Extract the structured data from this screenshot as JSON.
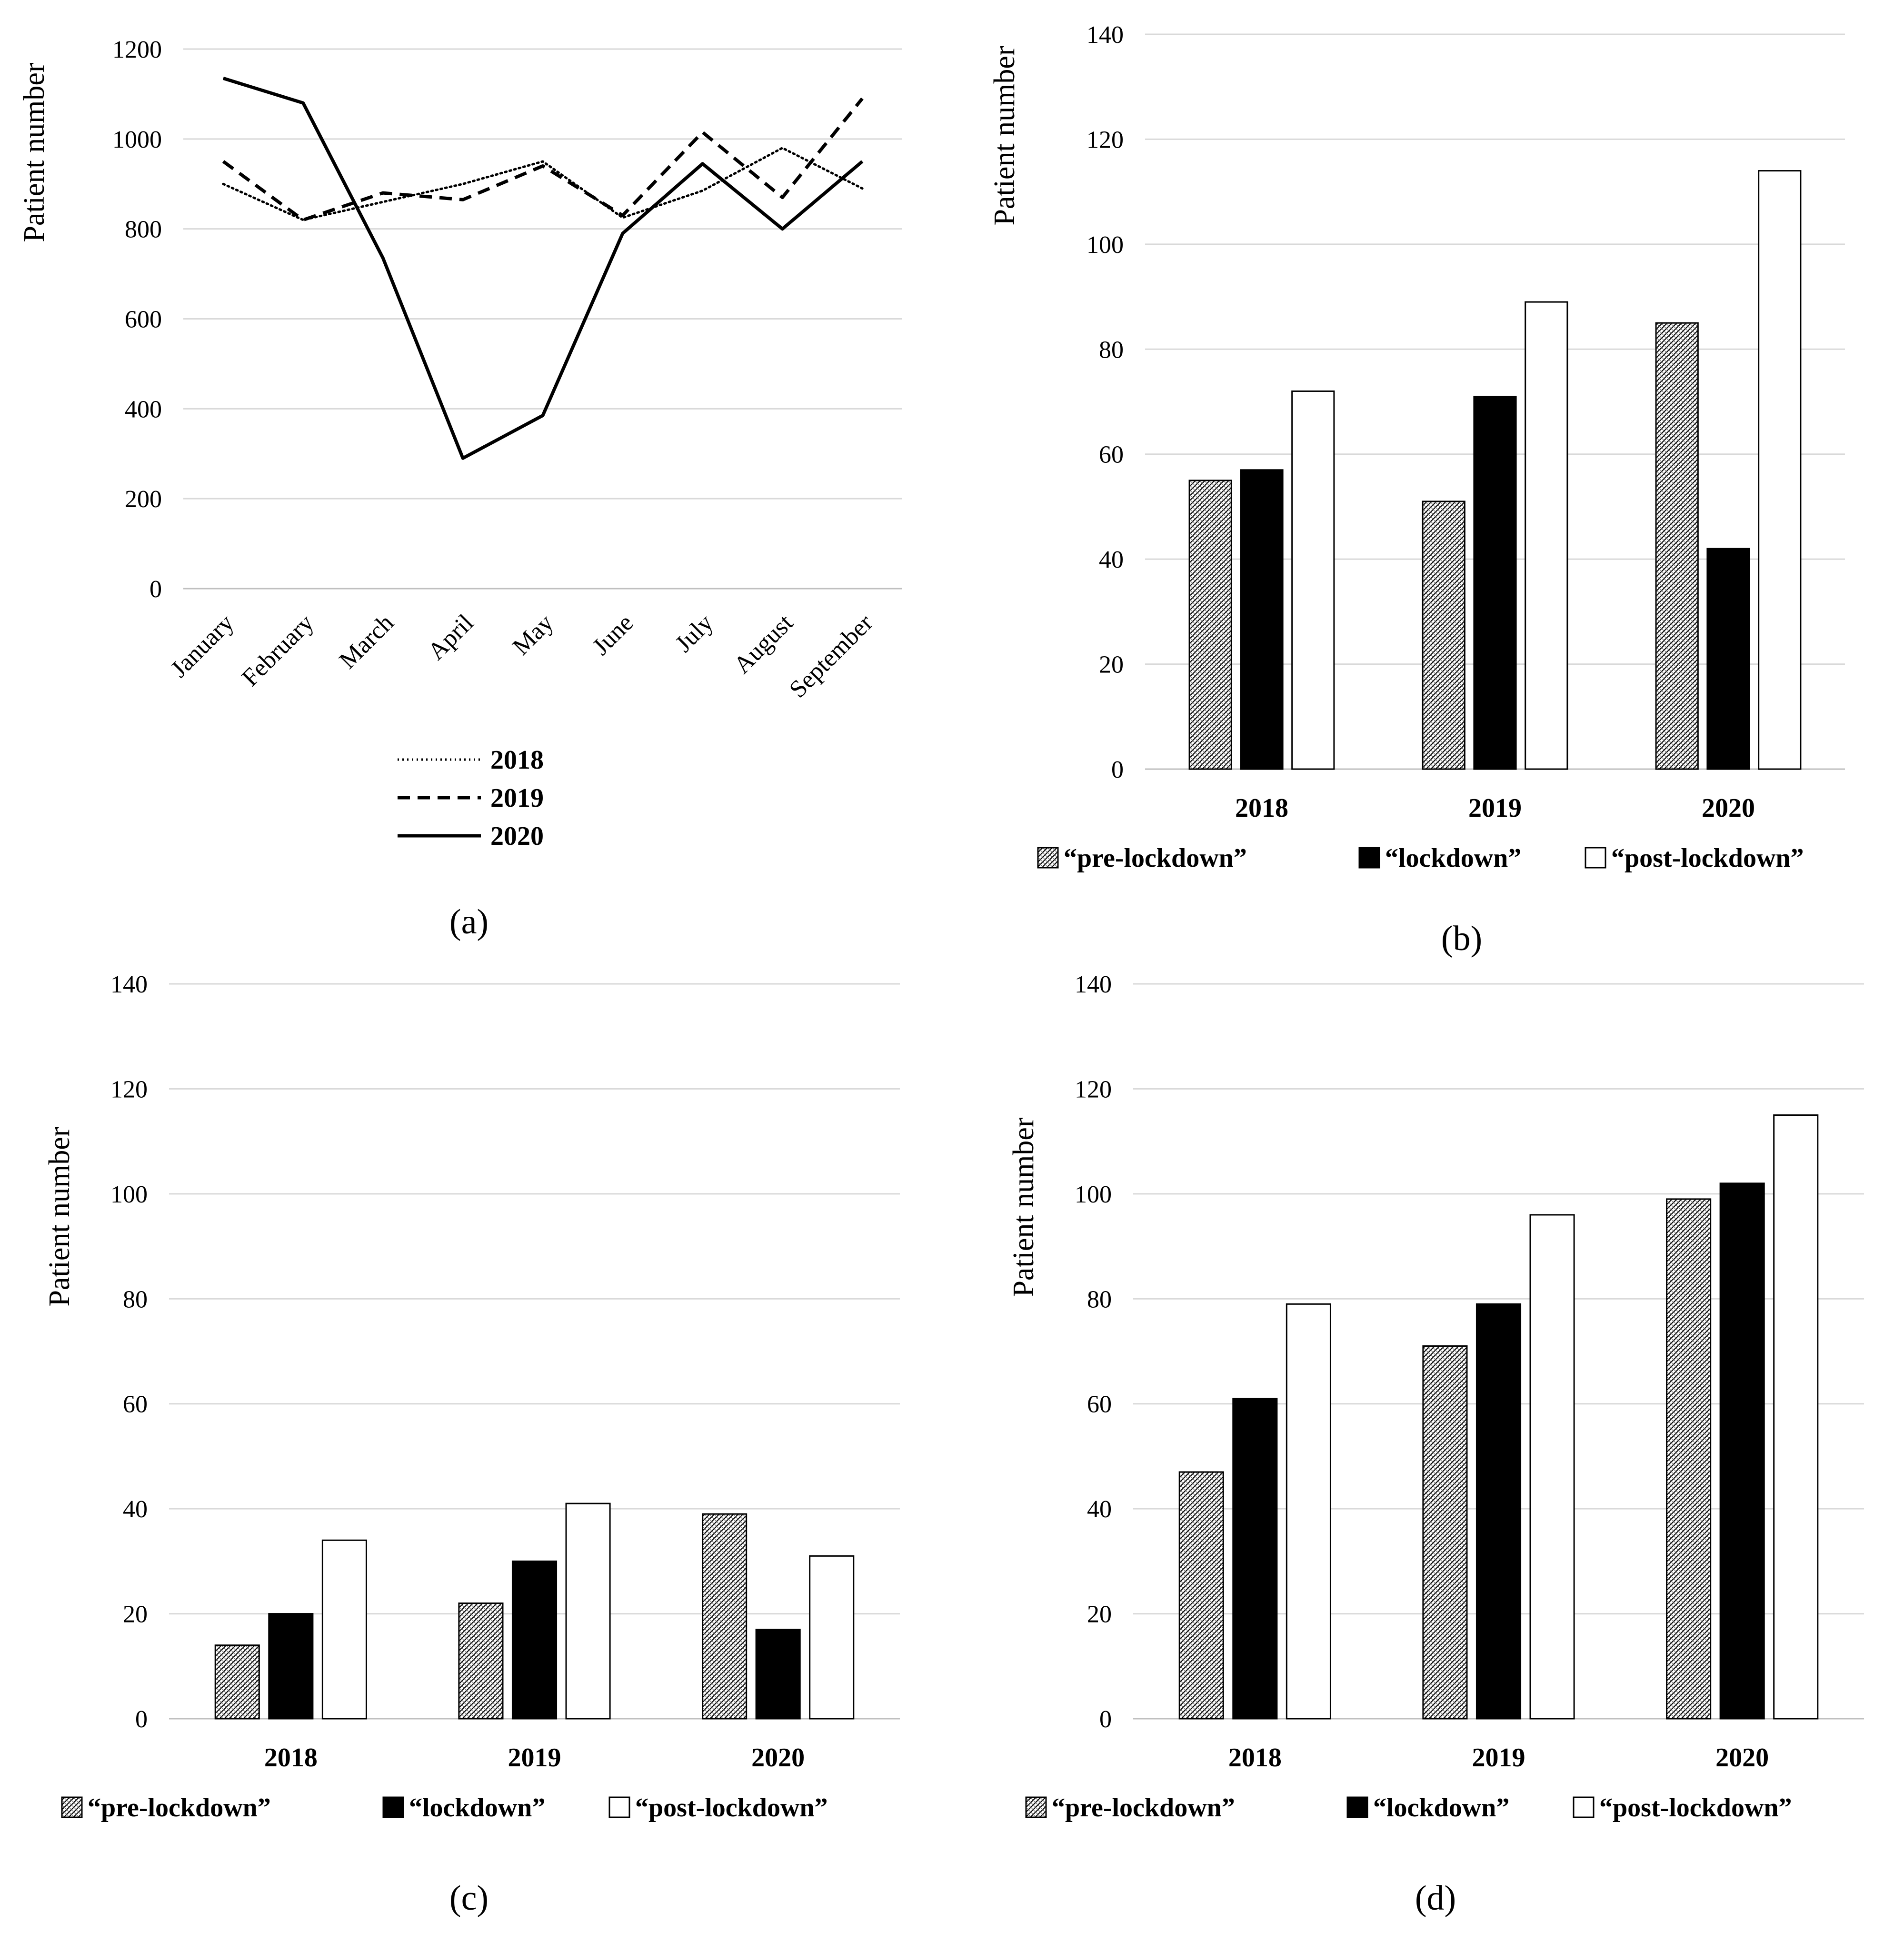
{
  "chart_data": [
    {
      "panel": "(a)",
      "type": "line",
      "categories": [
        "January",
        "February",
        "March",
        "April",
        "May",
        "June",
        "July",
        "August",
        "September"
      ],
      "series": [
        {
          "name": "2018",
          "style": "dotted",
          "values": [
            900,
            820,
            860,
            900,
            950,
            825,
            885,
            980,
            890
          ]
        },
        {
          "name": "2019",
          "style": "dashed",
          "values": [
            950,
            820,
            880,
            865,
            940,
            830,
            1015,
            870,
            1090
          ]
        },
        {
          "name": "2020",
          "style": "solid",
          "values": [
            1135,
            1080,
            735,
            290,
            385,
            790,
            945,
            800,
            950
          ]
        }
      ],
      "ylabel": "Patient number",
      "ylim": [
        0,
        1200
      ],
      "yticks": [
        0,
        200,
        400,
        600,
        800,
        1000,
        1200
      ],
      "grid": true,
      "legend": "bottom"
    },
    {
      "panel": "(b)",
      "type": "bar",
      "categories": [
        "2018",
        "2019",
        "2020"
      ],
      "series": [
        {
          "name": "“pre-lockdown”",
          "style": "hatched",
          "values": [
            55,
            51,
            85
          ]
        },
        {
          "name": "“lockdown”",
          "style": "black",
          "values": [
            57,
            71,
            42
          ]
        },
        {
          "name": "“post-lockdown”",
          "style": "white",
          "values": [
            72,
            89,
            114
          ]
        }
      ],
      "ylabel": "Patient number",
      "ylim": [
        0,
        140
      ],
      "yticks": [
        0,
        20,
        40,
        60,
        80,
        100,
        120,
        140
      ],
      "grid": true,
      "legend": "bottom"
    },
    {
      "panel": "(c)",
      "type": "bar",
      "categories": [
        "2018",
        "2019",
        "2020"
      ],
      "series": [
        {
          "name": "“pre-lockdown”",
          "style": "hatched",
          "values": [
            14,
            22,
            39
          ]
        },
        {
          "name": "“lockdown”",
          "style": "black",
          "values": [
            20,
            30,
            17
          ]
        },
        {
          "name": "“post-lockdown”",
          "style": "white",
          "values": [
            34,
            41,
            31
          ]
        }
      ],
      "ylabel": "Patient number",
      "ylim": [
        0,
        140
      ],
      "yticks": [
        0,
        20,
        40,
        60,
        80,
        100,
        120,
        140
      ],
      "grid": true,
      "legend": "bottom"
    },
    {
      "panel": "(d)",
      "type": "bar",
      "categories": [
        "2018",
        "2019",
        "2020"
      ],
      "series": [
        {
          "name": "“pre-lockdown”",
          "style": "hatched",
          "values": [
            47,
            71,
            99
          ]
        },
        {
          "name": "“lockdown”",
          "style": "black",
          "values": [
            61,
            79,
            102
          ]
        },
        {
          "name": "“post-lockdown”",
          "style": "white",
          "values": [
            79,
            96,
            115
          ]
        }
      ],
      "ylabel": "Patient number",
      "ylim": [
        0,
        140
      ],
      "yticks": [
        0,
        20,
        40,
        60,
        80,
        100,
        120,
        140
      ],
      "grid": true,
      "legend": "bottom"
    }
  ]
}
